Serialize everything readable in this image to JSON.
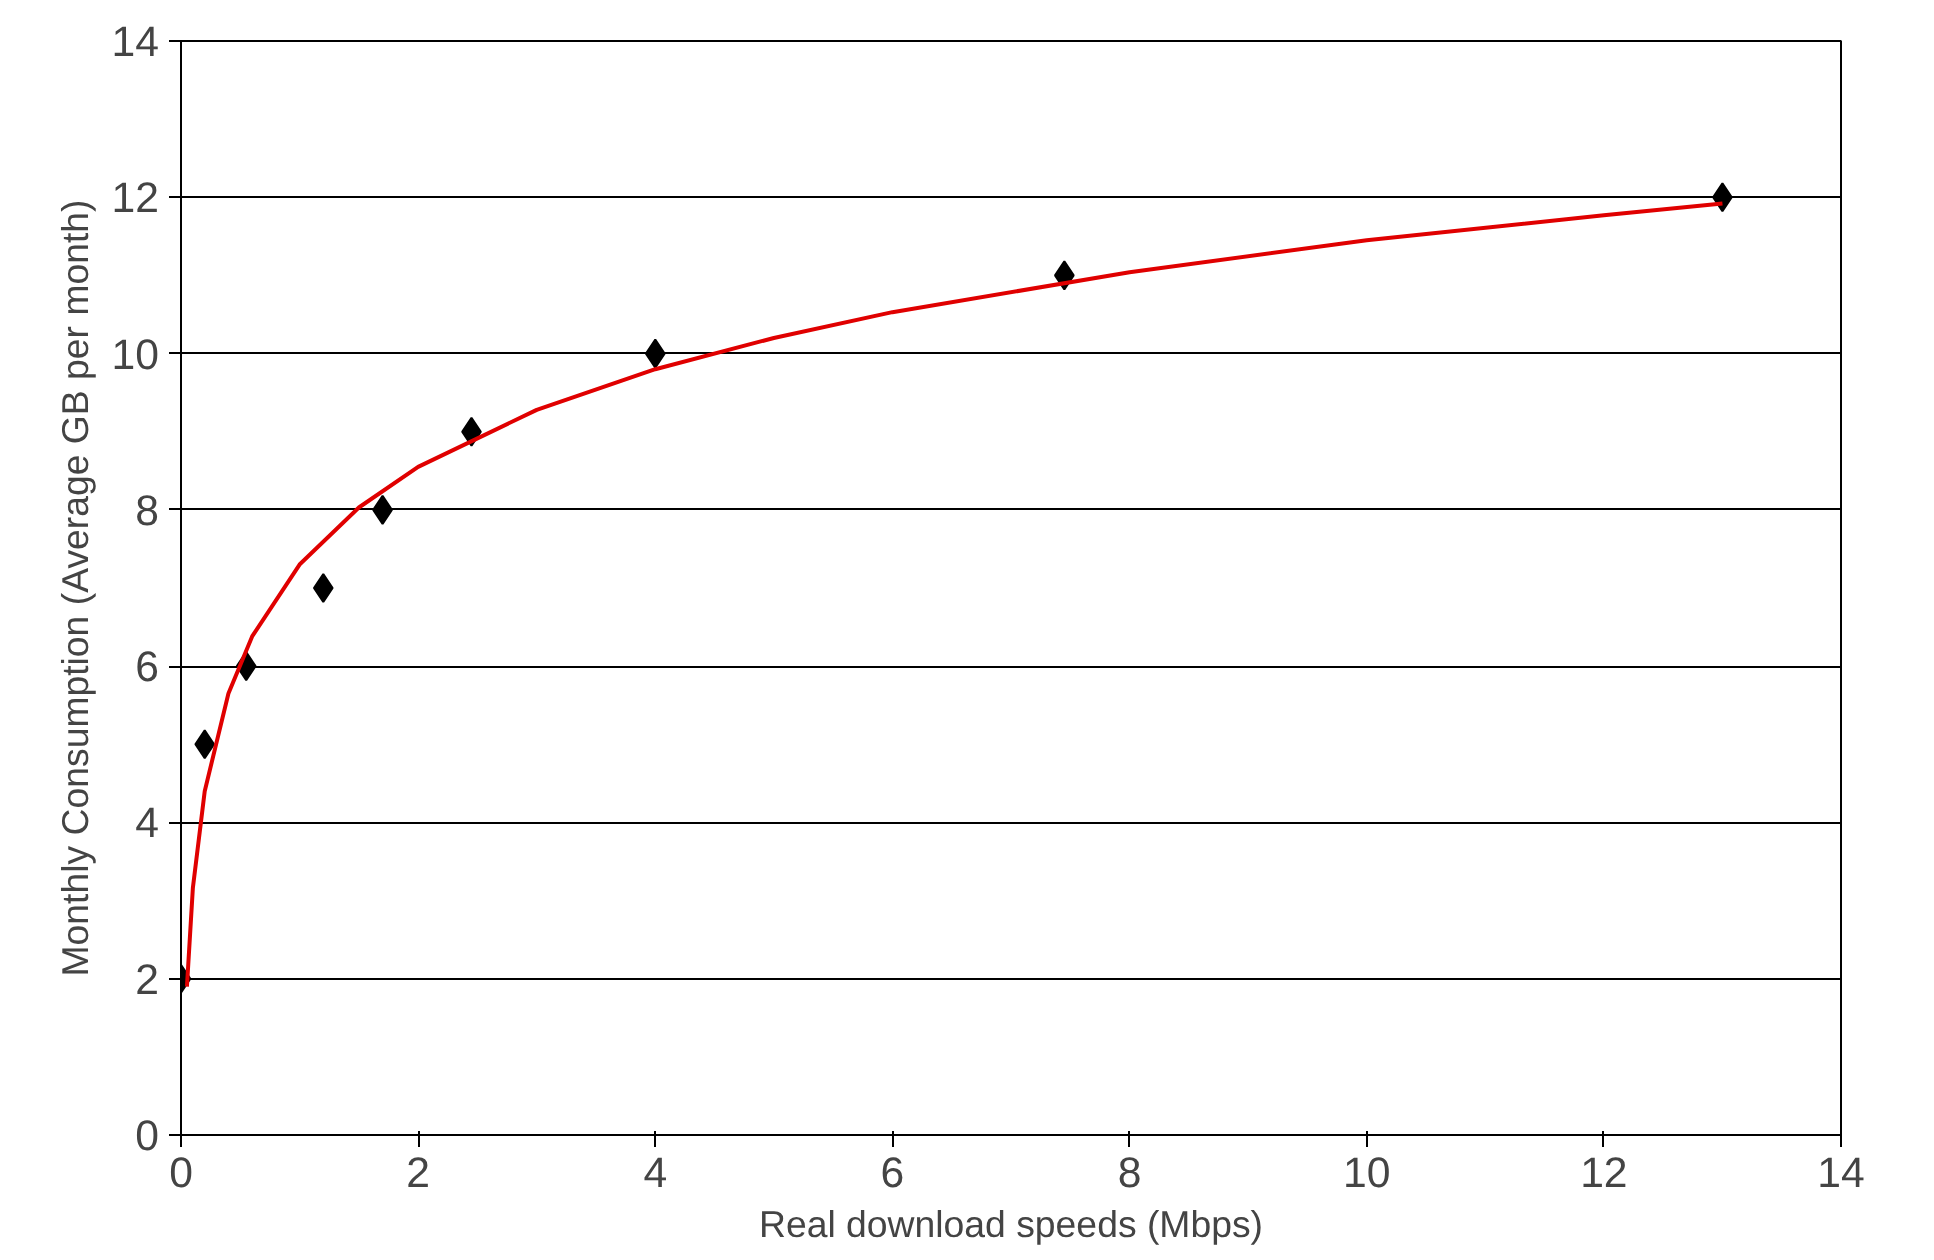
{
  "chart_data": {
    "type": "scatter",
    "xlabel": "Real download speeds (Mbps)",
    "ylabel": "Monthly Consumption (Average GB per month)",
    "xlim": [
      0,
      14
    ],
    "xticks": [
      0,
      2,
      4,
      6,
      8,
      10,
      12,
      14
    ],
    "ylim": [
      0,
      14
    ],
    "yticks": [
      0,
      2,
      4,
      6,
      8,
      10,
      12,
      14
    ],
    "grid": "y",
    "series": [
      {
        "marker": "diamond",
        "color": "#000000",
        "x": [
          0,
          0.2,
          0.55,
          1.2,
          1.7,
          2.45,
          4,
          7.45,
          13
        ],
        "values": [
          2,
          5,
          6,
          7,
          8,
          9,
          10,
          11,
          12
        ]
      },
      {
        "type": "line",
        "marker": "none",
        "color": "#e00000",
        "line_style": "solid",
        "x": [
          0.05,
          0.1,
          0.2,
          0.4,
          0.6,
          1,
          1.5,
          2,
          3,
          4,
          5,
          6,
          8,
          10,
          12,
          13
        ],
        "values": [
          1.9,
          3.16,
          4.4,
          5.65,
          6.38,
          7.3,
          8.03,
          8.55,
          9.28,
          9.8,
          10.2,
          10.53,
          11.04,
          11.45,
          11.77,
          11.92
        ]
      }
    ]
  }
}
